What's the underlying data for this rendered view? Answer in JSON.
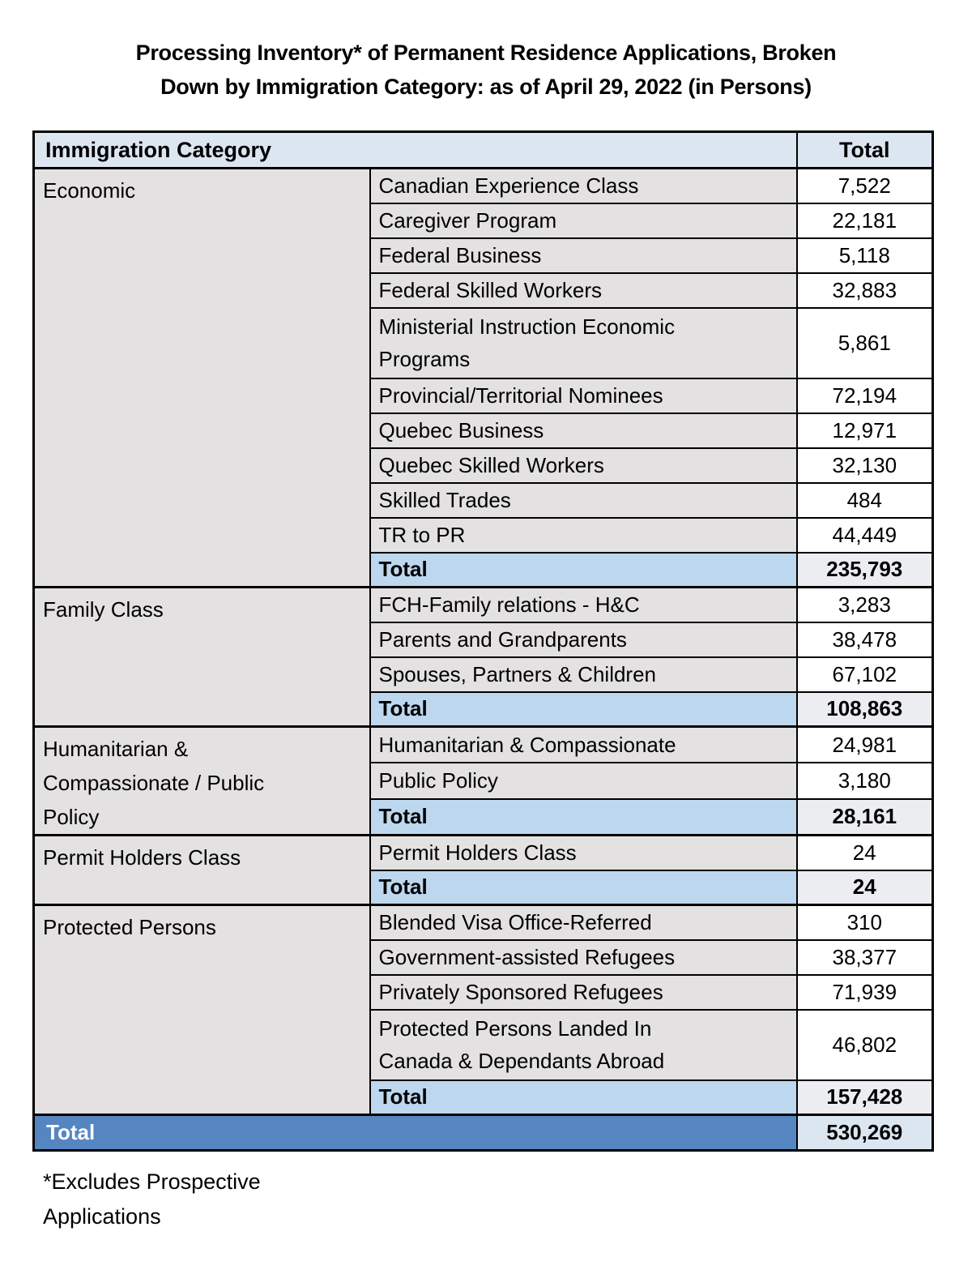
{
  "title_lines": [
    "Processing Inventory* of Permanent Residence Applications, Broken",
    "Down by Immigration Category: as of April 29, 2022 (in Persons)"
  ],
  "table": {
    "header": {
      "category_label": "Immigration Category",
      "total_label": "Total"
    },
    "sections": [
      {
        "category": "Economic",
        "rows": [
          {
            "label": "Canadian Experience Class",
            "value": "7,522"
          },
          {
            "label": "Caregiver Program",
            "value": "22,181"
          },
          {
            "label": "Federal Business",
            "value": "5,118"
          },
          {
            "label": "Federal Skilled Workers",
            "value": "32,883"
          },
          {
            "label_lines": [
              "Ministerial Instruction Economic",
              "Programs"
            ],
            "value": "5,861"
          },
          {
            "label": "Provincial/Territorial Nominees",
            "value": "72,194"
          },
          {
            "label": "Quebec Business",
            "value": "12,971"
          },
          {
            "label": "Quebec Skilled Workers",
            "value": "32,130"
          },
          {
            "label": "Skilled Trades",
            "value": "484"
          },
          {
            "label": "TR to PR",
            "value": "44,449"
          }
        ],
        "total_label": "Total",
        "total_value": "235,793"
      },
      {
        "category": "Family Class",
        "rows": [
          {
            "label": "FCH-Family relations - H&C",
            "value": "3,283"
          },
          {
            "label": "Parents and Grandparents",
            "value": "38,478"
          },
          {
            "label": "Spouses, Partners & Children",
            "value": "67,102"
          }
        ],
        "total_label": "Total",
        "total_value": "108,863"
      },
      {
        "category_lines": [
          "Humanitarian &",
          "Compassionate / Public",
          "Policy"
        ],
        "rows": [
          {
            "label": "Humanitarian & Compassionate",
            "value": "24,981"
          },
          {
            "label": "Public Policy",
            "value": "3,180"
          }
        ],
        "total_label": "Total",
        "total_value": "28,161"
      },
      {
        "category": "Permit Holders Class",
        "rows": [
          {
            "label": "Permit Holders Class",
            "value": "24"
          }
        ],
        "total_label": "Total",
        "total_value": "24"
      },
      {
        "category": "Protected Persons",
        "rows": [
          {
            "label": "Blended Visa Office-Referred",
            "value": "310"
          },
          {
            "label": "Government-assisted Refugees",
            "value": "38,377"
          },
          {
            "label": "Privately Sponsored Refugees",
            "value": "71,939"
          },
          {
            "label_lines": [
              "Protected Persons Landed In",
              "Canada & Dependants Abroad"
            ],
            "value": "46,802"
          }
        ],
        "total_label": "Total",
        "total_value": "157,428"
      }
    ],
    "grand_total": {
      "label": "Total",
      "value": "530,269"
    }
  },
  "footnote_lines": [
    "*Excludes Prospective",
    "Applications"
  ],
  "colors": {
    "header_bg": "#dce6f1",
    "category_cell_bg": "#e3e1e1",
    "value_cell_bg": "#ffffff",
    "section_total_label_bg": "#bdd7ee",
    "section_total_value_bg": "#ebedf0",
    "grand_total_bg": "#5586c2",
    "grand_total_text": "#ffffff",
    "grand_total_value_bg": "#dce6f1",
    "border": "#000000",
    "text": "#000000"
  }
}
